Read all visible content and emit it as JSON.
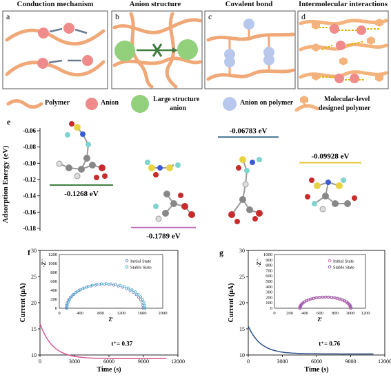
{
  "panel_titles": [
    "Conduction mechanism",
    "Anion structure",
    "Covalent bond",
    "Intermolecular interactions"
  ],
  "panel_letters": [
    "a",
    "b",
    "c",
    "d",
    "e",
    "f",
    "g"
  ],
  "legend": {
    "polymer": "Polymer",
    "anion": "Anion",
    "large_anion_1": "Large structure",
    "large_anion_2": "anion",
    "anion_on_polymer": "Anion on polymer",
    "designed_1": "Molecular-level",
    "designed_2": "designed polymer"
  },
  "colors": {
    "polymer": "#f0a878",
    "anion": "#ef8b8b",
    "large_anion": "#92d07c",
    "anion_on_polymer": "#b7c8ec",
    "designed": "#f4b37d",
    "arrow": "#6b7a90",
    "cross": "#3e7d3e",
    "hbond": "#e3b100",
    "energy_green": "#3f7f3f",
    "energy_pink": "#c46fbd",
    "energy_blue": "#3d6f8c",
    "energy_yellow": "#e8c531",
    "curve_f": "#d95a9a",
    "curve_g": "#2e4f86",
    "inset_initial_f": "#6e7ec5",
    "inset_stable_f": "#3aa9c8",
    "inset_initial_g": "#d96aa6",
    "inset_stable_g": "#8e5bb0"
  },
  "energy_chart": {
    "ylabel": "Adsorption Energy (eV)",
    "ylim": [
      -0.18,
      -0.06
    ],
    "yticks": [
      "-0.06",
      "-0.08",
      "-0.10",
      "-0.12",
      "-0.14",
      "-0.16",
      "-0.18"
    ],
    "levels": [
      {
        "value": -0.1268,
        "label": "-0.1268 eV"
      },
      {
        "value": -0.1789,
        "label": "-0.1789 eV"
      },
      {
        "value": -0.06783,
        "label": "-0.06783 eV"
      },
      {
        "value": -0.09928,
        "label": "-0.09928 eV"
      }
    ]
  },
  "current_charts": [
    {
      "ylabel": "Current (μA)",
      "xlabel": "Time (s)",
      "xlim": [
        0,
        12000
      ],
      "ylim": [
        10,
        30
      ],
      "xticks": [
        "0",
        "3000",
        "6000",
        "9000",
        "12000"
      ],
      "yticks": [
        "10",
        "15",
        "20",
        "25",
        "30"
      ],
      "annotation": "t⁺= 0.37",
      "decay": {
        "start": 16.0,
        "plateau": 9.3,
        "end_time": 11000
      },
      "inset": {
        "xlabel": "Z'",
        "ylabel": "-Z''",
        "xlim": [
          0,
          2000
        ],
        "ylim": [
          0,
          1200
        ],
        "xticks": [
          "0",
          "400",
          "800",
          "1200",
          "1600",
          "2000"
        ],
        "yticks": [
          "0",
          "200",
          "400",
          "600",
          "800",
          "1000",
          "1200"
        ],
        "legend": [
          "Initial State",
          "Stable State"
        ],
        "arc_initial": {
          "start": 130,
          "end": 1620,
          "peak": 530
        },
        "arc_stable": {
          "start": 150,
          "end": 1660,
          "peak": 550
        }
      }
    },
    {
      "ylabel": "Current (μA)",
      "xlabel": "Time (s)",
      "xlim": [
        0,
        12000
      ],
      "ylim": [
        10,
        30
      ],
      "xticks": [
        "0",
        "3000",
        "6000",
        "9000",
        "12000"
      ],
      "yticks": [
        "10",
        "15",
        "20",
        "25",
        "30"
      ],
      "annotation": "t⁺= 0.76",
      "decay": {
        "start": 15.5,
        "plateau": 10.2,
        "end_time": 11000
      },
      "inset": {
        "xlabel": "Z'",
        "ylabel": "-Z''",
        "xlim": [
          0,
          1200
        ],
        "ylim": [
          0,
          1000
        ],
        "xticks": [
          "0",
          "200",
          "400",
          "600",
          "800",
          "1000",
          "1200"
        ],
        "yticks": [
          "0",
          "100",
          "200",
          "300",
          "400",
          "500",
          "600",
          "700",
          "800",
          "900",
          "1000"
        ],
        "legend": [
          "Initial State",
          "Stable State"
        ],
        "arc_initial": {
          "start": 330,
          "end": 1000,
          "peak": 205
        },
        "arc_stable": {
          "start": 340,
          "end": 1010,
          "peak": 210
        }
      }
    }
  ]
}
